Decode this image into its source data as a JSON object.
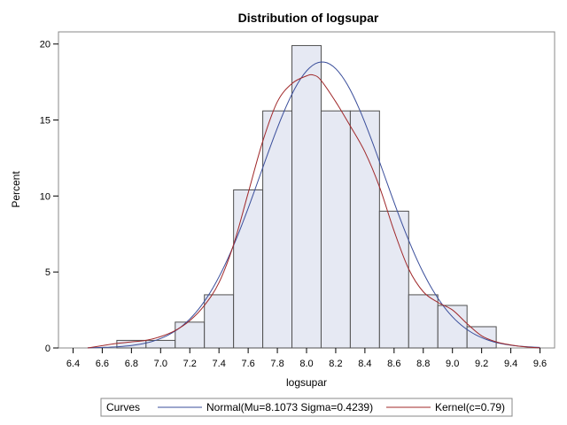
{
  "chart_data": {
    "type": "bar",
    "title": "Distribution of logsupar",
    "xlabel": "logsupar",
    "ylabel": "Percent",
    "xlim": [
      6.3,
      9.7
    ],
    "ylim": [
      0,
      20.8
    ],
    "x_ticks": [
      6.4,
      6.6,
      6.8,
      7.0,
      7.2,
      7.4,
      7.6,
      7.8,
      8.0,
      8.2,
      8.4,
      8.6,
      8.8,
      9.0,
      9.2,
      9.4,
      9.6
    ],
    "y_ticks": [
      0,
      5,
      10,
      15,
      20
    ],
    "bins": [
      {
        "start": 6.7,
        "end": 6.9,
        "value": 0.5
      },
      {
        "start": 6.9,
        "end": 7.1,
        "value": 0.5
      },
      {
        "start": 7.1,
        "end": 7.3,
        "value": 1.7
      },
      {
        "start": 7.3,
        "end": 7.5,
        "value": 3.5
      },
      {
        "start": 7.5,
        "end": 7.7,
        "value": 10.4
      },
      {
        "start": 7.7,
        "end": 7.9,
        "value": 15.6
      },
      {
        "start": 7.9,
        "end": 8.1,
        "value": 19.9
      },
      {
        "start": 8.1,
        "end": 8.3,
        "value": 15.6
      },
      {
        "start": 8.3,
        "end": 8.5,
        "value": 15.6
      },
      {
        "start": 8.5,
        "end": 8.7,
        "value": 9.0
      },
      {
        "start": 8.7,
        "end": 8.9,
        "value": 3.5
      },
      {
        "start": 8.9,
        "end": 9.1,
        "value": 2.8
      },
      {
        "start": 9.1,
        "end": 9.3,
        "value": 1.4
      }
    ],
    "curves": {
      "normal": {
        "label": "Normal(Mu=8.1073 Sigma=0.4239)",
        "mu": 8.1073,
        "sigma": 0.4239,
        "color": "#3a4e9b"
      },
      "kernel": {
        "label": "Kernel(c=0.79)",
        "color": "#a0282a",
        "x": [
          6.5,
          6.6,
          6.7,
          6.8,
          6.9,
          7.0,
          7.1,
          7.2,
          7.3,
          7.4,
          7.5,
          7.6,
          7.7,
          7.8,
          7.9,
          8.0,
          8.05,
          8.1,
          8.2,
          8.3,
          8.4,
          8.5,
          8.6,
          8.7,
          8.8,
          8.9,
          9.0,
          9.1,
          9.2,
          9.3,
          9.4,
          9.5,
          9.6
        ],
        "y": [
          0.0,
          0.15,
          0.3,
          0.4,
          0.5,
          0.75,
          1.15,
          1.8,
          2.8,
          4.3,
          6.8,
          10.2,
          13.6,
          16.2,
          17.4,
          17.9,
          17.95,
          17.6,
          16.2,
          14.6,
          12.9,
          10.6,
          7.7,
          5.2,
          3.7,
          3.0,
          2.5,
          1.6,
          0.8,
          0.4,
          0.2,
          0.07,
          0.0
        ]
      }
    },
    "legend": {
      "title": "Curves",
      "placement": "bottom"
    }
  }
}
